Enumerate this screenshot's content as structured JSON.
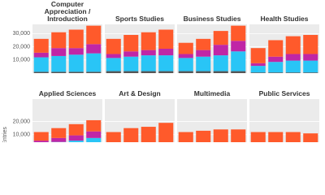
{
  "chart_data": [
    {
      "type": "bar",
      "stacked": true,
      "title": "Computer Appreciation / Introduction",
      "ylim": [
        0,
        37000
      ],
      "yticks": [
        {
          "value": 10000,
          "label": "10,000"
        },
        {
          "value": 20000,
          "label": "20,000"
        },
        {
          "value": 30000,
          "label": "30,000"
        }
      ],
      "series": [
        {
          "color": "#555555",
          "values": [
            1000,
            1000,
            1000,
            1000
          ]
        },
        {
          "color": "#29c5f6",
          "values": [
            11000,
            12000,
            13000,
            14000
          ]
        },
        {
          "color": "#c026a6",
          "values": [
            3500,
            6000,
            5000,
            7000
          ]
        },
        {
          "color": "#ff5a2b",
          "values": [
            10500,
            12000,
            14000,
            14000
          ]
        }
      ]
    },
    {
      "type": "bar",
      "stacked": true,
      "title": "Sports Studies",
      "ylim": [
        0,
        37000
      ],
      "yticks": [
        10000,
        20000,
        30000
      ],
      "series": [
        {
          "color": "#555555",
          "values": [
            1500,
            1500,
            1500,
            1500
          ]
        },
        {
          "color": "#29c5f6",
          "values": [
            10000,
            11000,
            12000,
            12000
          ]
        },
        {
          "color": "#c026a6",
          "values": [
            3000,
            4000,
            4000,
            5000
          ]
        },
        {
          "color": "#ff5a2b",
          "values": [
            11500,
            12500,
            13500,
            14500
          ]
        }
      ]
    },
    {
      "type": "bar",
      "stacked": true,
      "title": "Business Studies",
      "ylim": [
        0,
        37000
      ],
      "yticks": [
        10000,
        20000,
        30000
      ],
      "series": [
        {
          "color": "#555555",
          "values": [
            1500,
            1500,
            1500,
            1500
          ]
        },
        {
          "color": "#29c5f6",
          "values": [
            10000,
            11000,
            12000,
            15000
          ]
        },
        {
          "color": "#c026a6",
          "values": [
            3000,
            5000,
            8000,
            8000
          ]
        },
        {
          "color": "#ff5a2b",
          "values": [
            8500,
            8500,
            10500,
            11500
          ]
        }
      ]
    },
    {
      "type": "bar",
      "stacked": true,
      "title": "Health Studies",
      "ylim": [
        0,
        37000
      ],
      "yticks": [
        10000,
        20000,
        30000
      ],
      "series": [
        {
          "color": "#555555",
          "values": [
            500,
            500,
            500,
            500
          ]
        },
        {
          "color": "#29c5f6",
          "values": [
            5000,
            8000,
            9000,
            9000
          ]
        },
        {
          "color": "#c026a6",
          "values": [
            2000,
            4000,
            5000,
            5000
          ]
        },
        {
          "color": "#ff5a2b",
          "values": [
            11500,
            12500,
            13500,
            14500
          ]
        }
      ]
    },
    {
      "type": "bar",
      "stacked": true,
      "title": "Applied Sciences",
      "y_label": "Entries",
      "ylim": [
        0,
        37000
      ],
      "yticks": [
        {
          "value": 10000,
          "label": "10,000"
        },
        {
          "value": 20000,
          "label": "20,000"
        }
      ],
      "series": [
        {
          "color": "#555555",
          "values": [
            500,
            500,
            500,
            500
          ]
        },
        {
          "color": "#29c5f6",
          "values": [
            3000,
            4000,
            5000,
            7000
          ]
        },
        {
          "color": "#c026a6",
          "values": [
            2000,
            3000,
            4000,
            5000
          ]
        },
        {
          "color": "#ff5a2b",
          "values": [
            6500,
            7500,
            8500,
            8500
          ]
        }
      ]
    },
    {
      "type": "bar",
      "stacked": true,
      "title": "Art & Design",
      "ylim": [
        0,
        37000
      ],
      "yticks": [
        10000,
        20000
      ],
      "series": [
        {
          "color": "#555555",
          "values": [
            500,
            500,
            500,
            500
          ]
        },
        {
          "color": "#29c5f6",
          "values": [
            500,
            500,
            500,
            500
          ]
        },
        {
          "color": "#c026a6",
          "values": [
            500,
            500,
            500,
            500
          ]
        },
        {
          "color": "#ff5a2b",
          "values": [
            10500,
            13500,
            14500,
            17500
          ]
        }
      ]
    },
    {
      "type": "bar",
      "stacked": true,
      "title": "Multimedia",
      "ylim": [
        0,
        37000
      ],
      "yticks": [
        10000,
        20000
      ],
      "series": [
        {
          "color": "#555555",
          "values": [
            500,
            500,
            500,
            500
          ]
        },
        {
          "color": "#29c5f6",
          "values": [
            500,
            500,
            500,
            500
          ]
        },
        {
          "color": "#c026a6",
          "values": [
            500,
            500,
            500,
            500
          ]
        },
        {
          "color": "#ff5a2b",
          "values": [
            10500,
            11500,
            12500,
            12500
          ]
        }
      ]
    },
    {
      "type": "bar",
      "stacked": true,
      "title": "Public Services",
      "ylim": [
        0,
        37000
      ],
      "yticks": [
        10000,
        20000
      ],
      "series": [
        {
          "color": "#555555",
          "values": [
            500,
            500,
            500,
            500
          ]
        },
        {
          "color": "#29c5f6",
          "values": [
            500,
            500,
            500,
            500
          ]
        },
        {
          "color": "#c026a6",
          "values": [
            500,
            500,
            500,
            500
          ]
        },
        {
          "color": "#ff5a2b",
          "values": [
            10500,
            10500,
            10500,
            9500
          ]
        }
      ]
    }
  ]
}
